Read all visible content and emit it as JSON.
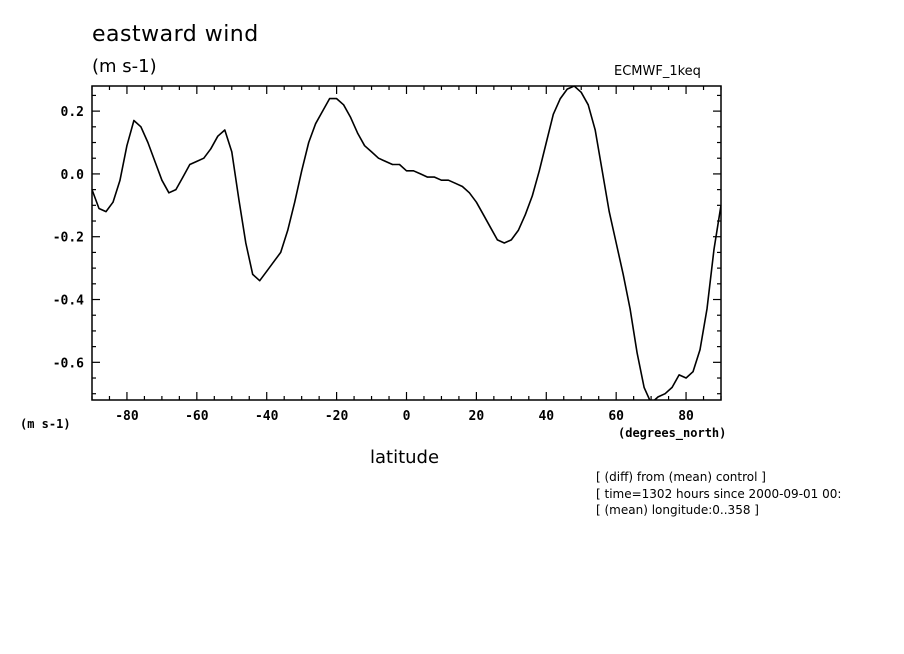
{
  "chart_data": {
    "type": "line",
    "title": "eastward wind",
    "units": "(m s-1)",
    "units_axis": "(m s-1)",
    "dataset": "ECMWF_1keq",
    "xlabel": "latitude",
    "xunits": "(degrees_north)",
    "xlim": [
      -90,
      90
    ],
    "ylim": [
      -0.72,
      0.28
    ],
    "xticks": [
      -80,
      -60,
      -40,
      -20,
      0,
      20,
      40,
      60,
      80
    ],
    "xtick_labels": [
      "-80",
      "-60",
      "-40",
      "-20",
      "0",
      "20",
      "40",
      "60",
      "80"
    ],
    "yticks": [
      0.2,
      0.0,
      -0.2,
      -0.4,
      -0.6
    ],
    "ytick_labels": [
      "0.2",
      "0.0",
      "-0.2",
      "-0.4",
      "-0.6"
    ],
    "grid": false,
    "x": [
      -90,
      -88,
      -86,
      -84,
      -82,
      -80,
      -78,
      -76,
      -74,
      -72,
      -70,
      -68,
      -66,
      -64,
      -62,
      -60,
      -58,
      -56,
      -54,
      -52,
      -50,
      -48,
      -46,
      -44,
      -42,
      -40,
      -38,
      -36,
      -34,
      -32,
      -30,
      -28,
      -26,
      -24,
      -22,
      -20,
      -18,
      -16,
      -14,
      -12,
      -10,
      -8,
      -6,
      -4,
      -2,
      0,
      2,
      4,
      6,
      8,
      10,
      12,
      14,
      16,
      18,
      20,
      22,
      24,
      26,
      28,
      30,
      32,
      34,
      36,
      38,
      40,
      42,
      44,
      46,
      48,
      50,
      52,
      54,
      56,
      58,
      60,
      62,
      64,
      66,
      68,
      70,
      72,
      74,
      76,
      78,
      80,
      82,
      84,
      86,
      88,
      90
    ],
    "y": [
      -0.05,
      -0.11,
      -0.12,
      -0.09,
      -0.02,
      0.09,
      0.17,
      0.15,
      0.1,
      0.04,
      -0.02,
      -0.06,
      -0.05,
      -0.01,
      0.03,
      0.04,
      0.05,
      0.08,
      0.12,
      0.14,
      0.07,
      -0.08,
      -0.22,
      -0.32,
      -0.34,
      -0.31,
      -0.28,
      -0.25,
      -0.18,
      -0.09,
      0.01,
      0.1,
      0.16,
      0.2,
      0.24,
      0.24,
      0.22,
      0.18,
      0.13,
      0.09,
      0.07,
      0.05,
      0.04,
      0.03,
      0.03,
      0.01,
      0.01,
      0.0,
      -0.01,
      -0.01,
      -0.02,
      -0.02,
      -0.03,
      -0.04,
      -0.06,
      -0.09,
      -0.13,
      -0.17,
      -0.21,
      -0.22,
      -0.21,
      -0.18,
      -0.13,
      -0.07,
      0.01,
      0.1,
      0.19,
      0.24,
      0.27,
      0.28,
      0.26,
      0.22,
      0.14,
      0.01,
      -0.12,
      -0.22,
      -0.32,
      -0.43,
      -0.57,
      -0.68,
      -0.73,
      -0.71,
      -0.7,
      -0.68,
      -0.64,
      -0.65,
      -0.63,
      -0.56,
      -0.43,
      -0.24,
      -0.1
    ],
    "annotations": [
      "[ (diff) from (mean) control ]",
      "[ time=1302 hours since 2000-09-01 00:",
      "[ (mean) longitude:0..358 ]"
    ]
  }
}
